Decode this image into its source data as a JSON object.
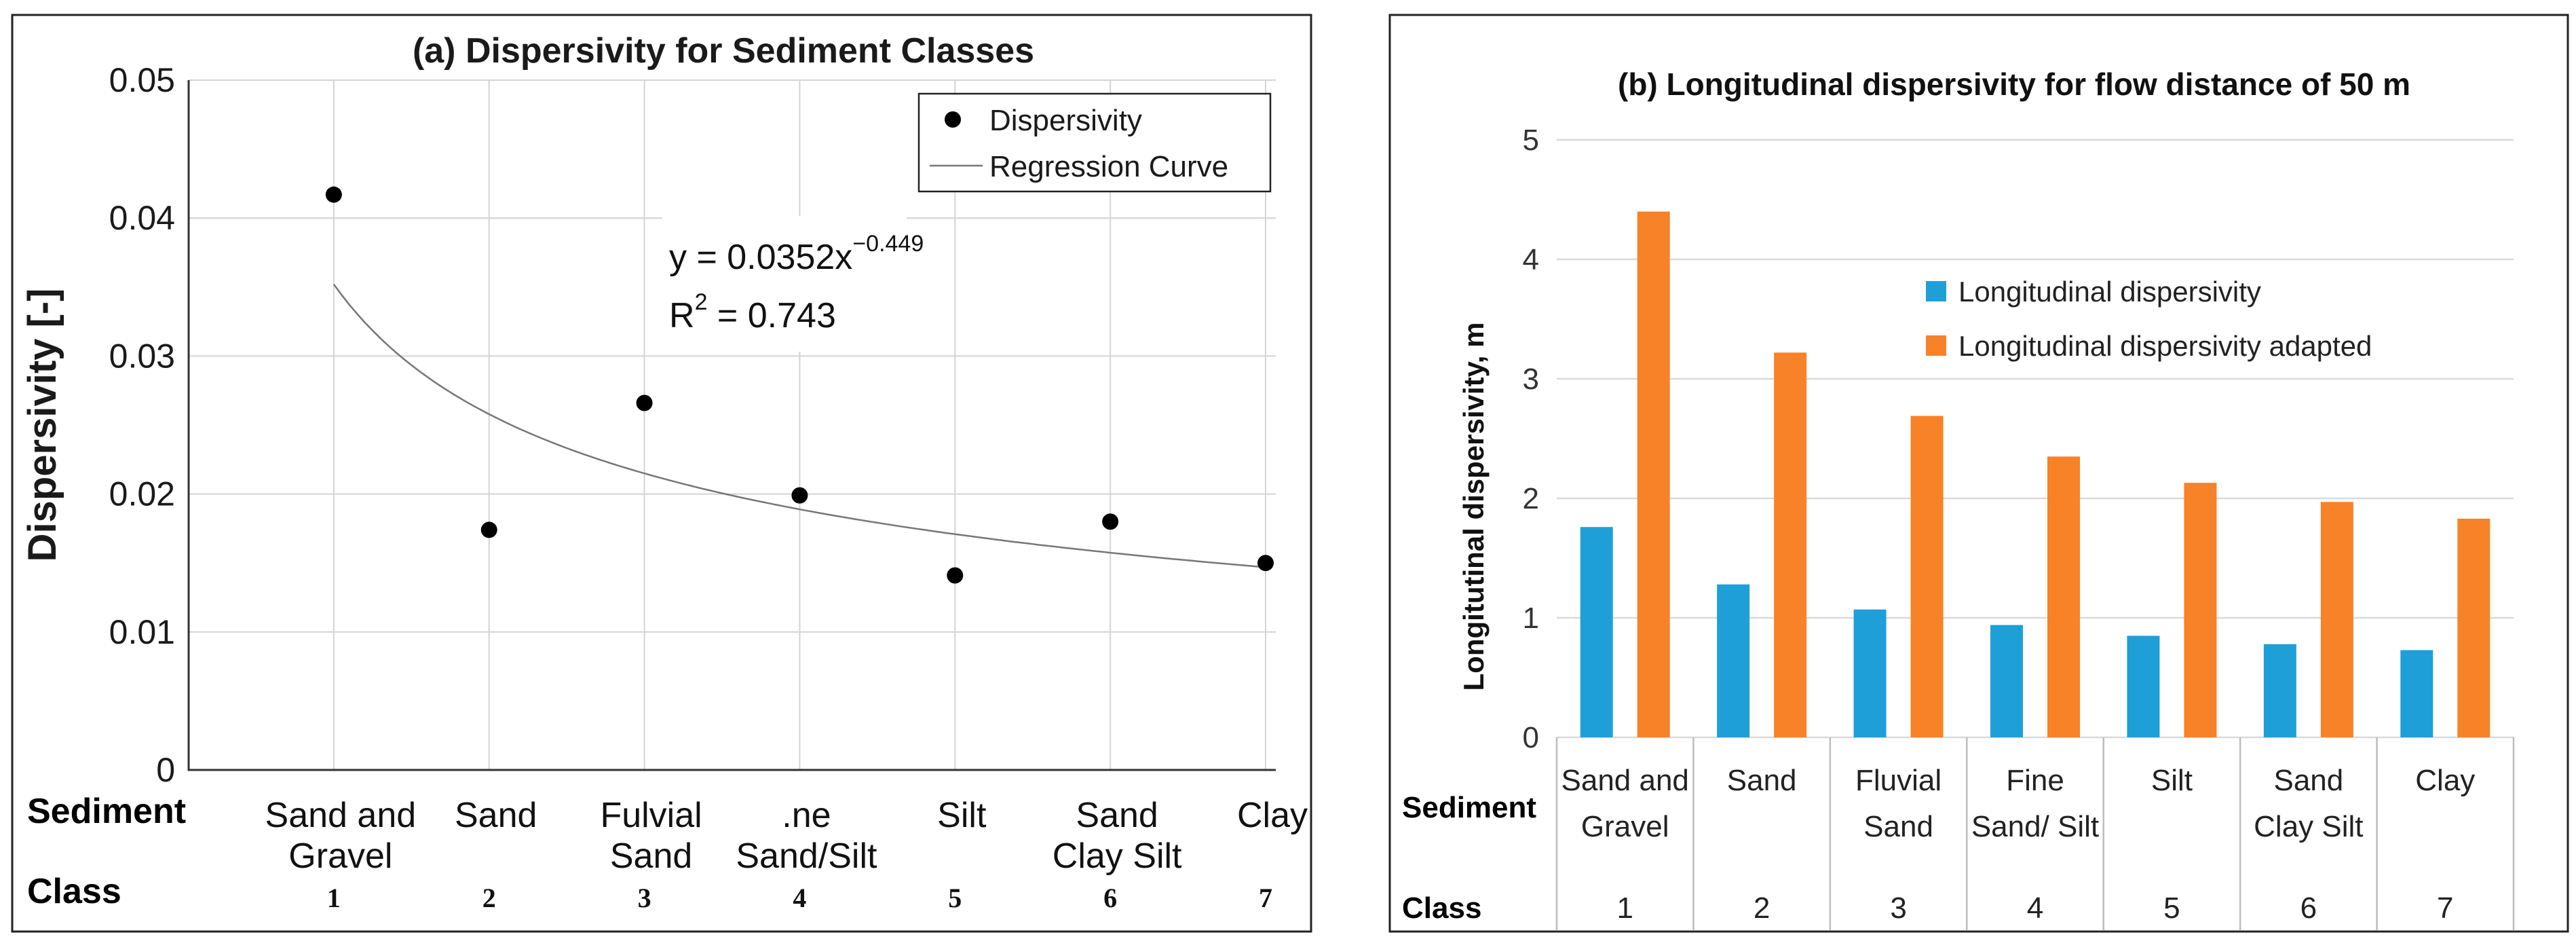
{
  "chart_data": [
    {
      "type": "scatter",
      "title": "(a) Dispersivity for Sediment Classes",
      "ylabel": "Dispersivity [-]",
      "ylim": [
        0,
        0.05
      ],
      "yticks": [
        "0",
        "0.01",
        "0.02",
        "0.03",
        "0.04",
        "0.05"
      ],
      "xlim": [
        0,
        7
      ],
      "x": [
        1,
        2,
        3,
        4,
        5,
        6,
        7
      ],
      "series": [
        {
          "name": "Dispersivity",
          "values": [
            0.0417,
            0.0174,
            0.0266,
            0.0199,
            0.0141,
            0.018,
            0.015
          ],
          "color": "#000000"
        }
      ],
      "regression": {
        "name": "Regression Curve",
        "a": 0.0352,
        "b": -0.449,
        "color": "#777777"
      },
      "equation": {
        "line1": "y = 0.0352x",
        "line1_exp": "−0.449",
        "line2_base": "R",
        "line2_sup": "2",
        "line2_rest": " = 0.743"
      },
      "legend_position": "top-right",
      "grid": true,
      "row_labels": {
        "sediment": "Sediment",
        "class": "Class"
      },
      "sediment_labels": [
        [
          "Sand and",
          "Gravel"
        ],
        [
          "Sand"
        ],
        [
          "Fulvial",
          "Sand"
        ],
        [
          ".ne",
          "Sand/Silt"
        ],
        [
          "Silt"
        ],
        [
          "Sand",
          "Clay Silt"
        ],
        [
          "Clay"
        ]
      ],
      "class_labels": [
        "1",
        "2",
        "3",
        "4",
        "5",
        "6",
        "7"
      ]
    },
    {
      "type": "bar",
      "title": "(b) Longitudinal dispersivity for flow distance of 50 m",
      "ylabel": "Longitutinal dispersivity, m",
      "ylim": [
        0,
        5
      ],
      "yticks": [
        "0",
        "1",
        "2",
        "3",
        "4",
        "5"
      ],
      "categories": [
        "1",
        "2",
        "3",
        "4",
        "5",
        "6",
        "7"
      ],
      "series": [
        {
          "name": "Longitudinal dispersivity",
          "values": [
            1.76,
            1.28,
            1.07,
            0.94,
            0.85,
            0.78,
            0.73
          ],
          "color": "#1f9fd8"
        },
        {
          "name": "Longitudinal dispersivity adapted",
          "values": [
            4.4,
            3.22,
            2.69,
            2.35,
            2.13,
            1.97,
            1.83
          ],
          "color": "#f78227"
        }
      ],
      "legend_position": "upper-center",
      "grid": true,
      "row_labels": {
        "sediment": "Sediment",
        "class": "Class"
      },
      "sediment_labels": [
        [
          "Sand and",
          "Gravel"
        ],
        [
          "Sand"
        ],
        [
          "Fluvial",
          "Sand"
        ],
        [
          "Fine",
          "Sand/ Silt"
        ],
        [
          "Silt"
        ],
        [
          "Sand",
          "Clay Silt"
        ],
        [
          "Clay"
        ]
      ],
      "class_labels": [
        "1",
        "2",
        "3",
        "4",
        "5",
        "6",
        "7"
      ]
    }
  ]
}
